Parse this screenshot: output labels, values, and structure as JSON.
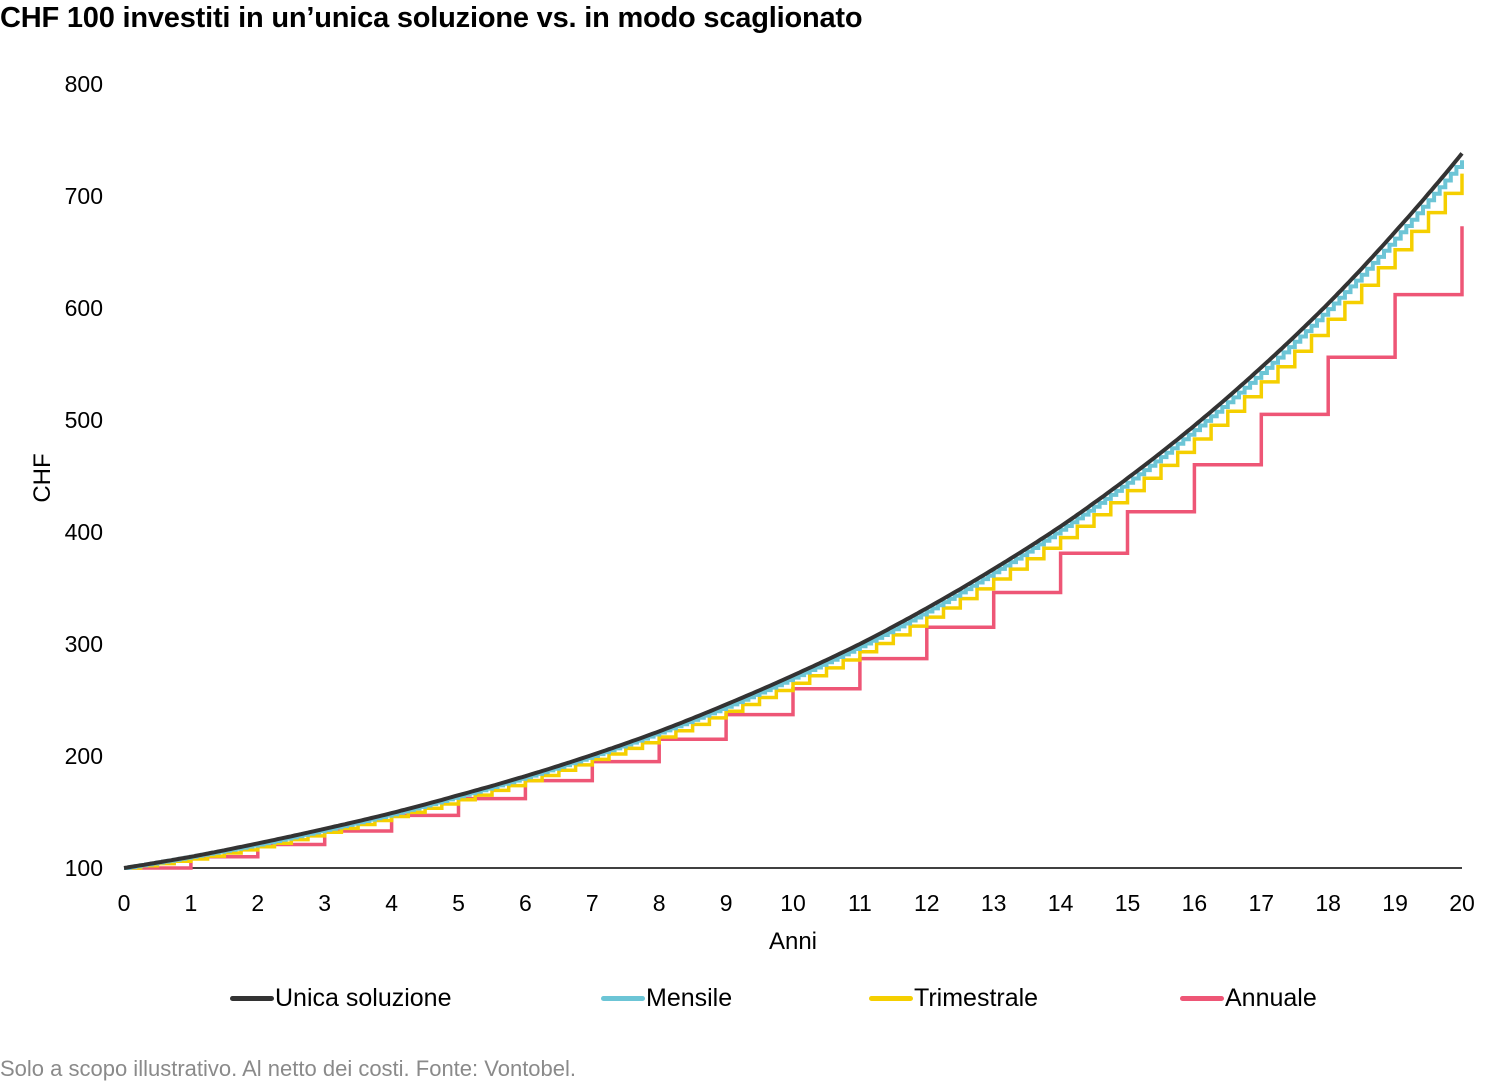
{
  "title": "CHF 100 investiti in un’unica soluzione vs. in modo scaglionato",
  "footnote": "Solo a scopo illustrativo. Al netto dei costi. Fonte: Vontobel.",
  "legend": [
    {
      "label": "Unica soluzione",
      "color": "#333333"
    },
    {
      "label": "Mensile",
      "color": "#6cc5d6"
    },
    {
      "label": "Trimestrale",
      "color": "#f5cf00"
    },
    {
      "label": "Annuale",
      "color": "#ee5676"
    }
  ],
  "chart_data": {
    "type": "line",
    "title": "CHF 100 investiti in un’unica soluzione vs. in modo scaglionato",
    "xlabel": "Anni",
    "ylabel": "CHF",
    "xlim": [
      0,
      20
    ],
    "ylim": [
      100,
      800
    ],
    "x_ticks": [
      0,
      1,
      2,
      3,
      4,
      5,
      6,
      7,
      8,
      9,
      10,
      11,
      12,
      13,
      14,
      15,
      16,
      17,
      18,
      19,
      20
    ],
    "y_ticks": [
      100,
      200,
      300,
      400,
      500,
      600,
      700,
      800
    ],
    "grid": false,
    "legend_position": "bottom",
    "annual_growth_rate_estimate": 0.105,
    "series": [
      {
        "name": "Unica soluzione",
        "color": "#333333",
        "style": "smooth",
        "x": [
          0,
          1,
          2,
          3,
          4,
          5,
          6,
          7,
          8,
          9,
          10,
          11,
          12,
          13,
          14,
          15,
          16,
          17,
          18,
          19,
          20
        ],
        "values": [
          100,
          110,
          122,
          135,
          149,
          165,
          182,
          201,
          222,
          246,
          272,
          300,
          332,
          367,
          405,
          448,
          495,
          547,
          604,
          668,
          738
        ]
      },
      {
        "name": "Mensile",
        "color": "#6cc5d6",
        "style": "step-monthly",
        "x": [
          0,
          1,
          2,
          3,
          4,
          5,
          6,
          7,
          8,
          9,
          10,
          11,
          12,
          13,
          14,
          15,
          16,
          17,
          18,
          19,
          20
        ],
        "values": [
          100,
          110,
          121,
          134,
          148,
          164,
          181,
          200,
          221,
          244,
          270,
          298,
          329,
          364,
          402,
          444,
          491,
          542,
          599,
          662,
          732
        ]
      },
      {
        "name": "Trimestrale",
        "color": "#f5cf00",
        "style": "step-quarterly",
        "x": [
          0,
          1,
          2,
          3,
          4,
          5,
          6,
          7,
          8,
          9,
          10,
          11,
          12,
          13,
          14,
          15,
          16,
          17,
          18,
          19,
          20
        ],
        "values": [
          100,
          108,
          119,
          132,
          146,
          161,
          178,
          197,
          217,
          240,
          265,
          293,
          324,
          358,
          395,
          437,
          483,
          534,
          590,
          652,
          720
        ]
      },
      {
        "name": "Annuale",
        "color": "#ee5676",
        "style": "step-annual",
        "x": [
          0,
          1,
          2,
          3,
          4,
          5,
          6,
          7,
          8,
          9,
          10,
          11,
          12,
          13,
          14,
          15,
          16,
          17,
          18,
          19,
          20
        ],
        "values": [
          100,
          110,
          121,
          133,
          147,
          162,
          178,
          195,
          215,
          237,
          260,
          287,
          315,
          346,
          381,
          418,
          460,
          505,
          556,
          612,
          673
        ]
      }
    ]
  }
}
